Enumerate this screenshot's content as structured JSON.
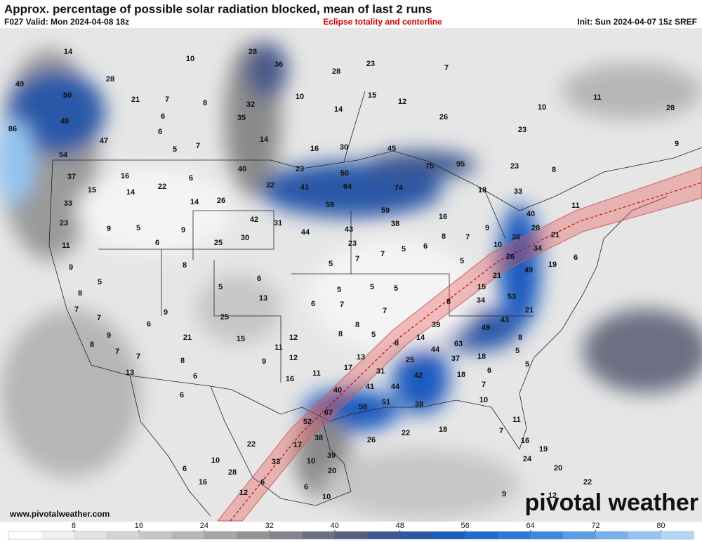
{
  "header": {
    "title": "Approx. percentage of possible solar radiation blocked, mean of last 2 runs",
    "valid": "F027 Valid: Mon 2024-04-08 18z",
    "overlay": "Eclipse totality and centerline",
    "init": "Init: Sun 2024-04-07 15z SREF"
  },
  "footer": {
    "website": "www.pivotalweather.com",
    "logo": "pivotal weather"
  },
  "colorbar": {
    "lim": [
      0,
      84
    ],
    "ticks": [
      8,
      16,
      24,
      32,
      40,
      48,
      56,
      64,
      72,
      80
    ],
    "colors": [
      "#ffffff",
      "#f0f0f0",
      "#e2e2e2",
      "#d4d4d4",
      "#c6c6c6",
      "#b6b6b6",
      "#a6a6a6",
      "#949494",
      "#82848c",
      "#6c7082",
      "#58607c",
      "#3e5890",
      "#2a58a8",
      "#1c5cbf",
      "#1f6ad0",
      "#2a7ad8",
      "#3b8ae0",
      "#5a9de6",
      "#77b1ec",
      "#94c4f1",
      "#b0d6f6"
    ]
  },
  "map_values": [
    14,
    10,
    28,
    36,
    28,
    23,
    7,
    49,
    28,
    50,
    21,
    7,
    8,
    10,
    15,
    12,
    11,
    10,
    28,
    48,
    6,
    32,
    14,
    26,
    35,
    86,
    47,
    6,
    5,
    7,
    14,
    16,
    30,
    45,
    23,
    9,
    54,
    40,
    23,
    50,
    75,
    95,
    23,
    8,
    37,
    16,
    22,
    6,
    32,
    41,
    64,
    74,
    18,
    33,
    15,
    14,
    26,
    59,
    59,
    11,
    33,
    14,
    16,
    40,
    23,
    9,
    5,
    9,
    42,
    31,
    44,
    43,
    38,
    28,
    21,
    11,
    6,
    25,
    30,
    23,
    7,
    5,
    6,
    8,
    7,
    9,
    10,
    38,
    34,
    26,
    49,
    19,
    6,
    9,
    8,
    5,
    7,
    5,
    21,
    15,
    53,
    34,
    21,
    8,
    5,
    5,
    6,
    13,
    5,
    5,
    5,
    8,
    7,
    7,
    9,
    25,
    6,
    7,
    7,
    6,
    21,
    15,
    8,
    39,
    49,
    43,
    9,
    8,
    11,
    12,
    8,
    5,
    8,
    14,
    63,
    8,
    7,
    7,
    8,
    9,
    12,
    13,
    25,
    44,
    37,
    18,
    5,
    13,
    6,
    16,
    11,
    17,
    31,
    42,
    18,
    6,
    5,
    6,
    40,
    41,
    44,
    7,
    67,
    58,
    51,
    38,
    10,
    52,
    22,
    18,
    26,
    38,
    17,
    22,
    39,
    11,
    7,
    16,
    10,
    33,
    10,
    19,
    24,
    28,
    6,
    20,
    16,
    6,
    20,
    22,
    12,
    6,
    10,
    9,
    12
  ]
}
